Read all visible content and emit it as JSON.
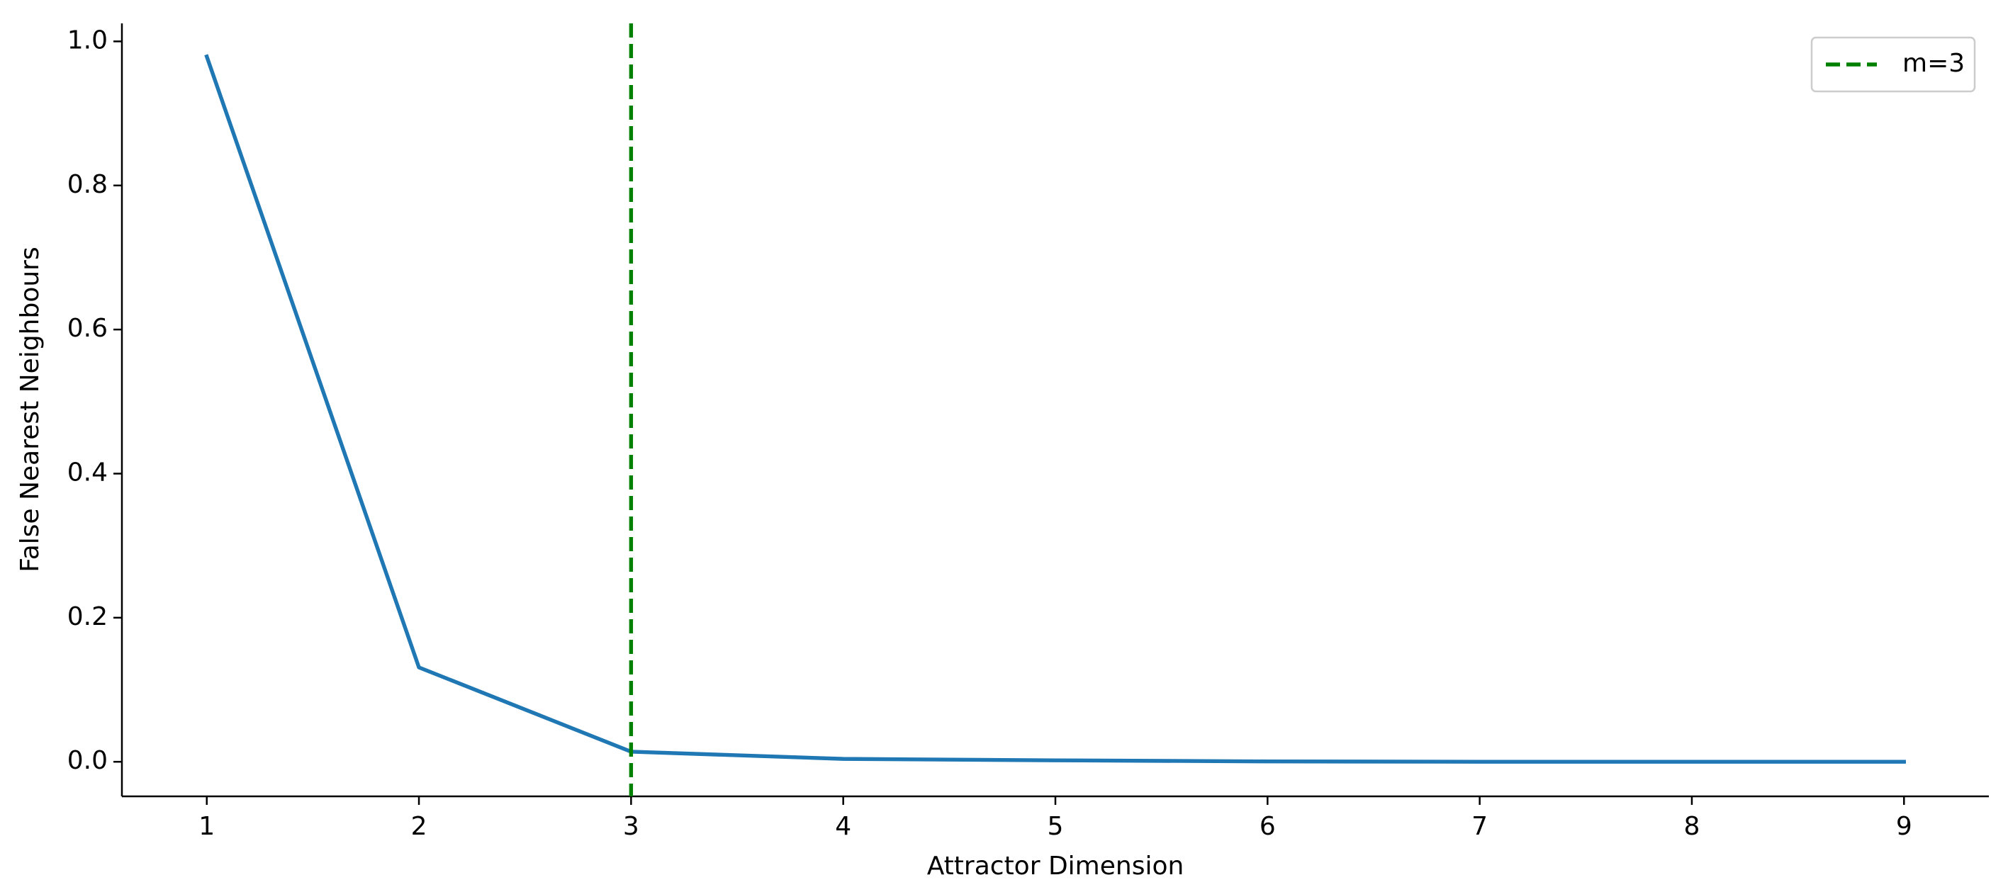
{
  "chart_data": {
    "type": "line",
    "x": [
      1,
      2,
      3,
      4,
      5,
      6,
      7,
      8,
      9
    ],
    "values": [
      0.979,
      0.131,
      0.014,
      0.004,
      0.002,
      0.0005,
      0,
      0,
      0
    ],
    "color": "#1f77b4",
    "xlabel": "Attractor Dimension",
    "ylabel": "False Nearest Neighbours",
    "xlim": [
      0.6,
      9.4
    ],
    "xticks": [
      1,
      2,
      3,
      4,
      5,
      6,
      7,
      8,
      9
    ],
    "ylim": [
      -0.048,
      1.025
    ],
    "yticks": [
      {
        "value": 0,
        "label": "0.0"
      },
      {
        "value": 0.2,
        "label": "0.2"
      },
      {
        "value": 0.4,
        "label": "0.4"
      },
      {
        "value": 0.6,
        "label": "0.6"
      },
      {
        "value": 0.8,
        "label": "0.8"
      },
      {
        "value": 1,
        "label": "1.0"
      }
    ],
    "vline": {
      "x": 3,
      "label": "m=3",
      "color": "green"
    },
    "legend": "upper right"
  }
}
